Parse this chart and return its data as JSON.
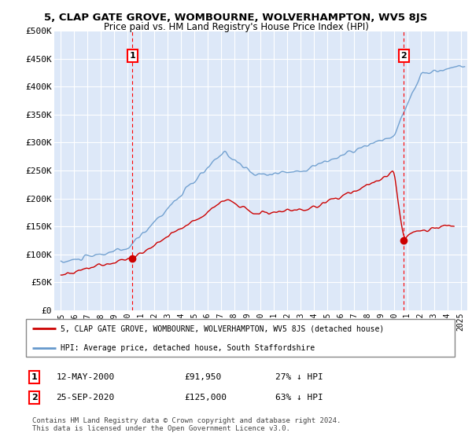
{
  "title": "5, CLAP GATE GROVE, WOMBOURNE, WOLVERHAMPTON, WV5 8JS",
  "subtitle": "Price paid vs. HM Land Registry's House Price Index (HPI)",
  "ylabel_ticks": [
    "£0",
    "£50K",
    "£100K",
    "£150K",
    "£200K",
    "£250K",
    "£300K",
    "£350K",
    "£400K",
    "£450K",
    "£500K"
  ],
  "ytick_values": [
    0,
    50000,
    100000,
    150000,
    200000,
    250000,
    300000,
    350000,
    400000,
    450000,
    500000
  ],
  "ylim": [
    0,
    500000
  ],
  "xlim_start": 1994.5,
  "xlim_end": 2025.5,
  "x_ticks": [
    1995,
    1996,
    1997,
    1998,
    1999,
    2000,
    2001,
    2002,
    2003,
    2004,
    2005,
    2006,
    2007,
    2008,
    2009,
    2010,
    2011,
    2012,
    2013,
    2014,
    2015,
    2016,
    2017,
    2018,
    2019,
    2020,
    2021,
    2022,
    2023,
    2024,
    2025
  ],
  "red_color": "#cc0000",
  "blue_color": "#6699cc",
  "ann1_x": 2000.37,
  "ann1_y": 91950,
  "ann2_x": 2020.73,
  "ann2_y": 125000,
  "ann1_label": "1",
  "ann2_label": "2",
  "ann1_date": "12-MAY-2000",
  "ann1_price": "£91,950",
  "ann1_pct": "27% ↓ HPI",
  "ann2_date": "25-SEP-2020",
  "ann2_price": "£125,000",
  "ann2_pct": "63% ↓ HPI",
  "legend_line1": "5, CLAP GATE GROVE, WOMBOURNE, WOLVERHAMPTON, WV5 8JS (detached house)",
  "legend_line2": "HPI: Average price, detached house, South Staffordshire",
  "footer": "Contains HM Land Registry data © Crown copyright and database right 2024.\nThis data is licensed under the Open Government Licence v3.0.",
  "bg_color": "#ffffff",
  "plot_bg": "#dde8f8",
  "grid_color": "#ffffff"
}
